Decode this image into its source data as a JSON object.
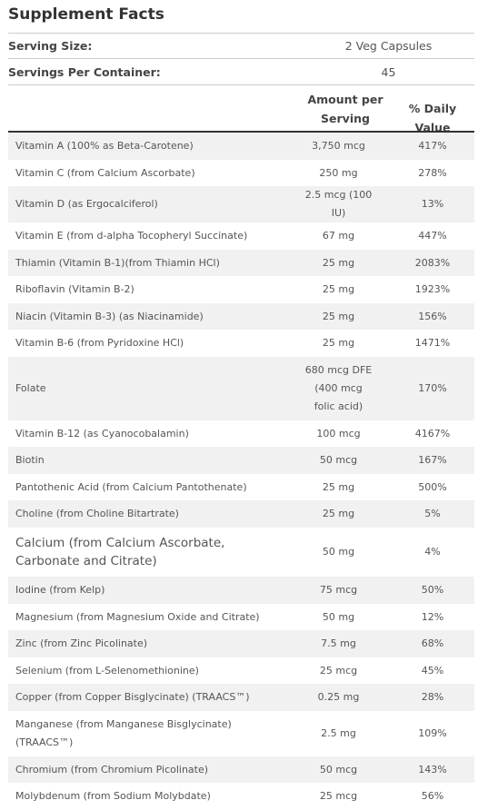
{
  "header": {
    "title": "Supplement Facts"
  },
  "serving_size": {
    "label": "Serving Size:",
    "value": "2 Veg Capsules"
  },
  "servings_per_container": {
    "label": "Servings Per Container:",
    "value": "45"
  },
  "table": {
    "columns": [
      "Amount per Serving",
      "% Daily Value"
    ],
    "rows": [
      [
        "Vitamin A (100% as Beta-Carotene)",
        "3,750 mcg",
        "417%"
      ],
      [
        "Vitamin C (from Calcium Ascorbate)",
        "250 mg",
        "278%"
      ],
      [
        "Vitamin D (as Ergocalciferol)",
        "2.5 mcg (100 IU)",
        "13%"
      ],
      [
        "Vitamin E (from d-alpha Tocopheryl Succinate)",
        "67 mg",
        "447%"
      ],
      [
        "Thiamin (Vitamin B-1)(from Thiamin HCl)",
        "25 mg",
        "2083%"
      ],
      [
        "Riboflavin (Vitamin B-2)",
        "25 mg",
        "1923%"
      ],
      [
        "Niacin (Vitamin B-3) (as Niacinamide)",
        "25 mg",
        "156%"
      ],
      [
        "Vitamin B-6 (from Pyridoxine HCl)",
        "25 mg",
        "1471%"
      ],
      [
        "Folate",
        "680 mcg DFE (400 mcg folic acid)",
        "170%"
      ],
      [
        "Vitamin B-12 (as Cyanocobalamin)",
        "100 mcg",
        "4167%"
      ],
      [
        "Biotin",
        "50 mcg",
        "167%"
      ],
      [
        "Pantothenic Acid (from Calcium Pantothenate)",
        "25 mg",
        "500%"
      ],
      [
        "Choline (from Choline Bitartrate)",
        "25 mg",
        "5%"
      ],
      [
        "Calcium (from Calcium Ascorbate, Carbonate and Citrate)",
        "50 mg",
        "4%"
      ],
      [
        "Iodine (from Kelp)",
        "75 mcg",
        "50%"
      ],
      [
        "Magnesium (from Magnesium Oxide and Citrate)",
        "50 mg",
        "12%"
      ],
      [
        "Zinc (from Zinc Picolinate)",
        "7.5 mg",
        "68%"
      ],
      [
        "Selenium (from L-Selenomethionine)",
        "25 mcg",
        "45%"
      ],
      [
        "Copper (from Copper Bisglycinate) (TRAACS™)",
        "0.25 mg",
        "28%"
      ],
      [
        "Manganese (from Manganese Bisglycinate) (TRAACS™)",
        "2.5 mg",
        "109%"
      ],
      [
        "Chromium (from Chromium Picolinate)",
        "50 mcg",
        "143%"
      ],
      [
        "Molybdenum (from Sodium Molybdate)",
        "25 mcg",
        "56%"
      ]
    ]
  }
}
